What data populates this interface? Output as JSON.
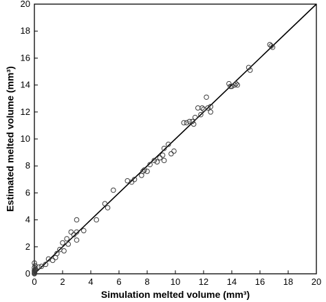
{
  "chart_data": {
    "type": "scatter",
    "xlabel": "Simulation melted volume (mm³)",
    "ylabel": "Estimated melted volume (mm³)",
    "xlim": [
      0,
      20
    ],
    "ylim": [
      0,
      20
    ],
    "xticks": [
      0,
      2,
      4,
      6,
      8,
      10,
      12,
      14,
      16,
      18,
      20
    ],
    "yticks": [
      0,
      2,
      4,
      6,
      8,
      10,
      12,
      14,
      16,
      18,
      20
    ],
    "grid": false,
    "reference_line": {
      "x": [
        0,
        20
      ],
      "y": [
        0,
        20
      ]
    },
    "series": [
      {
        "marker": "open-circle",
        "points": [
          [
            0.0,
            0.0
          ],
          [
            0.0,
            0.05
          ],
          [
            0.02,
            0.1
          ],
          [
            0.0,
            0.15
          ],
          [
            0.03,
            0.2
          ],
          [
            0.0,
            0.25
          ],
          [
            0.05,
            0.3
          ],
          [
            0.1,
            0.35
          ],
          [
            0.0,
            0.45
          ],
          [
            0.05,
            0.6
          ],
          [
            0.0,
            0.8
          ],
          [
            0.3,
            0.5
          ],
          [
            0.5,
            0.55
          ],
          [
            0.8,
            0.7
          ],
          [
            1.0,
            1.1
          ],
          [
            1.3,
            1.0
          ],
          [
            1.5,
            1.2
          ],
          [
            1.6,
            1.5
          ],
          [
            1.8,
            1.8
          ],
          [
            2.0,
            2.3
          ],
          [
            2.1,
            1.7
          ],
          [
            2.3,
            2.6
          ],
          [
            2.4,
            2.2
          ],
          [
            2.6,
            3.1
          ],
          [
            2.8,
            2.9
          ],
          [
            3.0,
            4.0
          ],
          [
            3.0,
            3.1
          ],
          [
            3.0,
            2.5
          ],
          [
            3.5,
            3.2
          ],
          [
            4.4,
            4.0
          ],
          [
            5.0,
            5.2
          ],
          [
            5.2,
            4.9
          ],
          [
            5.6,
            6.2
          ],
          [
            6.6,
            6.9
          ],
          [
            6.9,
            6.8
          ],
          [
            7.1,
            7.0
          ],
          [
            7.6,
            7.3
          ],
          [
            7.7,
            7.6
          ],
          [
            7.8,
            7.7
          ],
          [
            8.0,
            7.6
          ],
          [
            8.2,
            8.1
          ],
          [
            8.5,
            8.4
          ],
          [
            8.7,
            8.3
          ],
          [
            8.9,
            8.6
          ],
          [
            9.1,
            8.8
          ],
          [
            9.2,
            9.3
          ],
          [
            9.2,
            8.4
          ],
          [
            9.5,
            9.6
          ],
          [
            9.7,
            8.9
          ],
          [
            9.9,
            9.1
          ],
          [
            10.6,
            11.2
          ],
          [
            10.8,
            11.2
          ],
          [
            11.0,
            11.3
          ],
          [
            11.2,
            11.3
          ],
          [
            11.3,
            11.1
          ],
          [
            11.4,
            11.6
          ],
          [
            11.6,
            12.3
          ],
          [
            11.8,
            11.8
          ],
          [
            11.9,
            12.3
          ],
          [
            12.0,
            12.2
          ],
          [
            12.2,
            13.1
          ],
          [
            12.3,
            12.3
          ],
          [
            12.5,
            12.4
          ],
          [
            12.5,
            12.0
          ],
          [
            13.8,
            14.1
          ],
          [
            13.9,
            13.9
          ],
          [
            14.0,
            13.9
          ],
          [
            14.2,
            14.0
          ],
          [
            14.3,
            14.1
          ],
          [
            14.4,
            14.0
          ],
          [
            15.2,
            15.3
          ],
          [
            15.3,
            15.1
          ],
          [
            16.7,
            17.0
          ],
          [
            16.8,
            16.9
          ],
          [
            16.9,
            16.8
          ]
        ]
      }
    ]
  }
}
